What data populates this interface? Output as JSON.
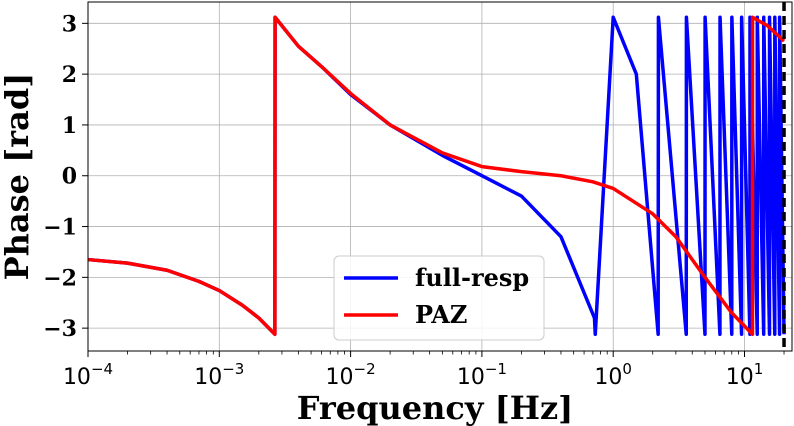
{
  "chart_data": {
    "type": "line",
    "title": "",
    "xlabel": "Frequency [Hz]",
    "ylabel": "Phase [rad]",
    "xscale": "log",
    "xlim": [
      0.0001,
      23
    ],
    "ylim": [
      -3.45,
      3.42
    ],
    "grid": true,
    "legend_position": "lower-right",
    "x_ticks": [
      {
        "value": 0.0001,
        "base": "10",
        "exp": "−4"
      },
      {
        "value": 0.001,
        "base": "10",
        "exp": "−3"
      },
      {
        "value": 0.01,
        "base": "10",
        "exp": "−2"
      },
      {
        "value": 0.1,
        "base": "10",
        "exp": "−1"
      },
      {
        "value": 1,
        "base": "10",
        "exp": "0"
      },
      {
        "value": 10,
        "base": "10",
        "exp": "1"
      }
    ],
    "y_ticks": [
      {
        "value": 3,
        "label": "3"
      },
      {
        "value": 2,
        "label": "2"
      },
      {
        "value": 1,
        "label": "1"
      },
      {
        "value": 0,
        "label": "0"
      },
      {
        "value": -1,
        "label": "−1"
      },
      {
        "value": -2,
        "label": "−2"
      },
      {
        "value": -3,
        "label": "−3"
      }
    ],
    "vline": {
      "x": 20,
      "style": "dashed",
      "color": "#000000"
    },
    "series": [
      {
        "name": "full-resp",
        "color": "#0000ff",
        "x": [
          0.0001,
          0.0002,
          0.0004,
          0.0007,
          0.001,
          0.0015,
          0.002,
          0.00265,
          0.00266,
          0.004,
          0.006,
          0.01,
          0.02,
          0.05,
          0.1,
          0.2,
          0.4,
          0.72,
          0.73,
          1.0,
          1.5,
          2.2,
          2.21,
          3.6,
          3.61,
          5.0,
          5.01,
          6.5,
          6.51,
          8.0,
          8.01,
          9.5,
          9.51,
          11.0,
          11.01,
          12.5,
          12.51,
          14.0,
          14.01,
          15.5,
          15.51,
          17.0,
          17.01,
          18.5,
          18.51,
          20.0
        ],
        "y": [
          -1.65,
          -1.72,
          -1.86,
          -2.08,
          -2.26,
          -2.55,
          -2.8,
          -3.12,
          3.12,
          2.55,
          2.15,
          1.6,
          1.0,
          0.4,
          0.0,
          -0.4,
          -1.2,
          -2.8,
          -3.12,
          3.12,
          2.0,
          -3.12,
          3.12,
          -3.12,
          3.12,
          -3.12,
          3.12,
          -3.12,
          3.12,
          -3.12,
          3.12,
          -3.12,
          3.12,
          -3.12,
          3.12,
          -3.12,
          3.12,
          -3.12,
          3.12,
          -3.12,
          3.12,
          -3.12,
          3.12,
          -3.12,
          3.12,
          -3.12
        ]
      },
      {
        "name": "PAZ",
        "color": "#ff0000",
        "x": [
          0.0001,
          0.0002,
          0.0004,
          0.0007,
          0.001,
          0.0015,
          0.002,
          0.00265,
          0.00266,
          0.004,
          0.006,
          0.01,
          0.02,
          0.05,
          0.1,
          0.2,
          0.4,
          0.7,
          1.0,
          2.0,
          3.0,
          5.0,
          8.0,
          11.5,
          11.51,
          15.0,
          20.0
        ],
        "y": [
          -1.65,
          -1.72,
          -1.86,
          -2.08,
          -2.26,
          -2.55,
          -2.8,
          -3.12,
          3.12,
          2.55,
          2.15,
          1.62,
          1.0,
          0.45,
          0.18,
          0.08,
          0.0,
          -0.12,
          -0.25,
          -0.75,
          -1.2,
          -2.0,
          -2.7,
          -3.12,
          3.12,
          2.95,
          2.65
        ]
      }
    ]
  }
}
